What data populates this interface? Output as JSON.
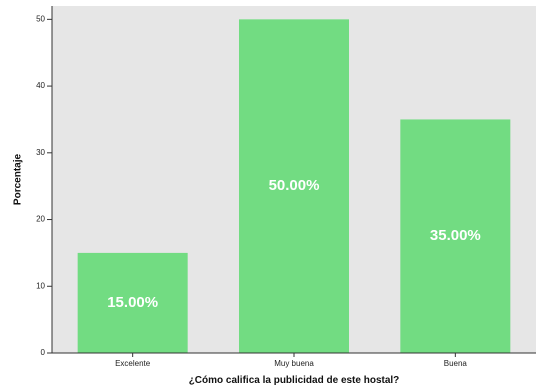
{
  "chart_data": {
    "type": "bar",
    "title": "",
    "xlabel": "¿Cómo califica la publicidad de este hostal?",
    "ylabel": "Porcentaje",
    "categories": [
      "Excelente",
      "Muy buena",
      "Buena"
    ],
    "values": [
      15,
      50,
      35
    ],
    "data_labels": [
      "15.00%",
      "50.00%",
      "35.00%"
    ],
    "ylim": [
      0,
      52
    ],
    "yticks": [
      0,
      10,
      20,
      30,
      40,
      50
    ],
    "grid": false,
    "legend": "none",
    "colors": {
      "bar": "#72dc82",
      "plot_background": "#e6e6e6",
      "axis": "#333333"
    }
  }
}
